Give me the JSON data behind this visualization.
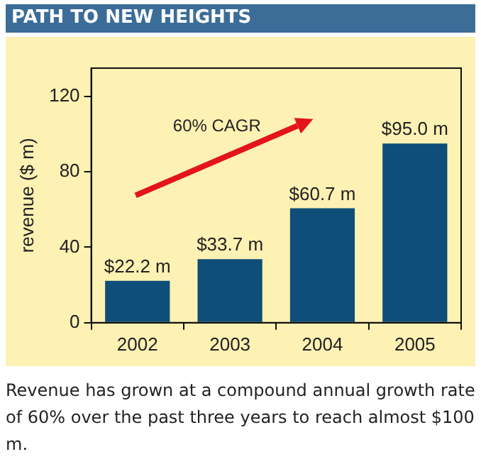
{
  "chart_data": {
    "type": "bar",
    "title": "PATH TO NEW HEIGHTS",
    "ylabel": "revenue ($ m)",
    "categories": [
      "2002",
      "2003",
      "2004",
      "2005"
    ],
    "values": [
      22.2,
      33.7,
      60.7,
      95.0
    ],
    "value_labels": [
      "$22.2 m",
      "$33.7 m",
      "$60.7 m",
      "$95.0 m"
    ],
    "color": "#0e4e78",
    "ylim": [
      0,
      135
    ],
    "yticks": [
      0,
      40,
      80,
      120
    ],
    "grid": false,
    "legend": false,
    "annotations": [
      "60% CAGR",
      "Revenue has grown at a compound annual growth rate of 60% over the past three years to reach almost $100 m."
    ]
  }
}
